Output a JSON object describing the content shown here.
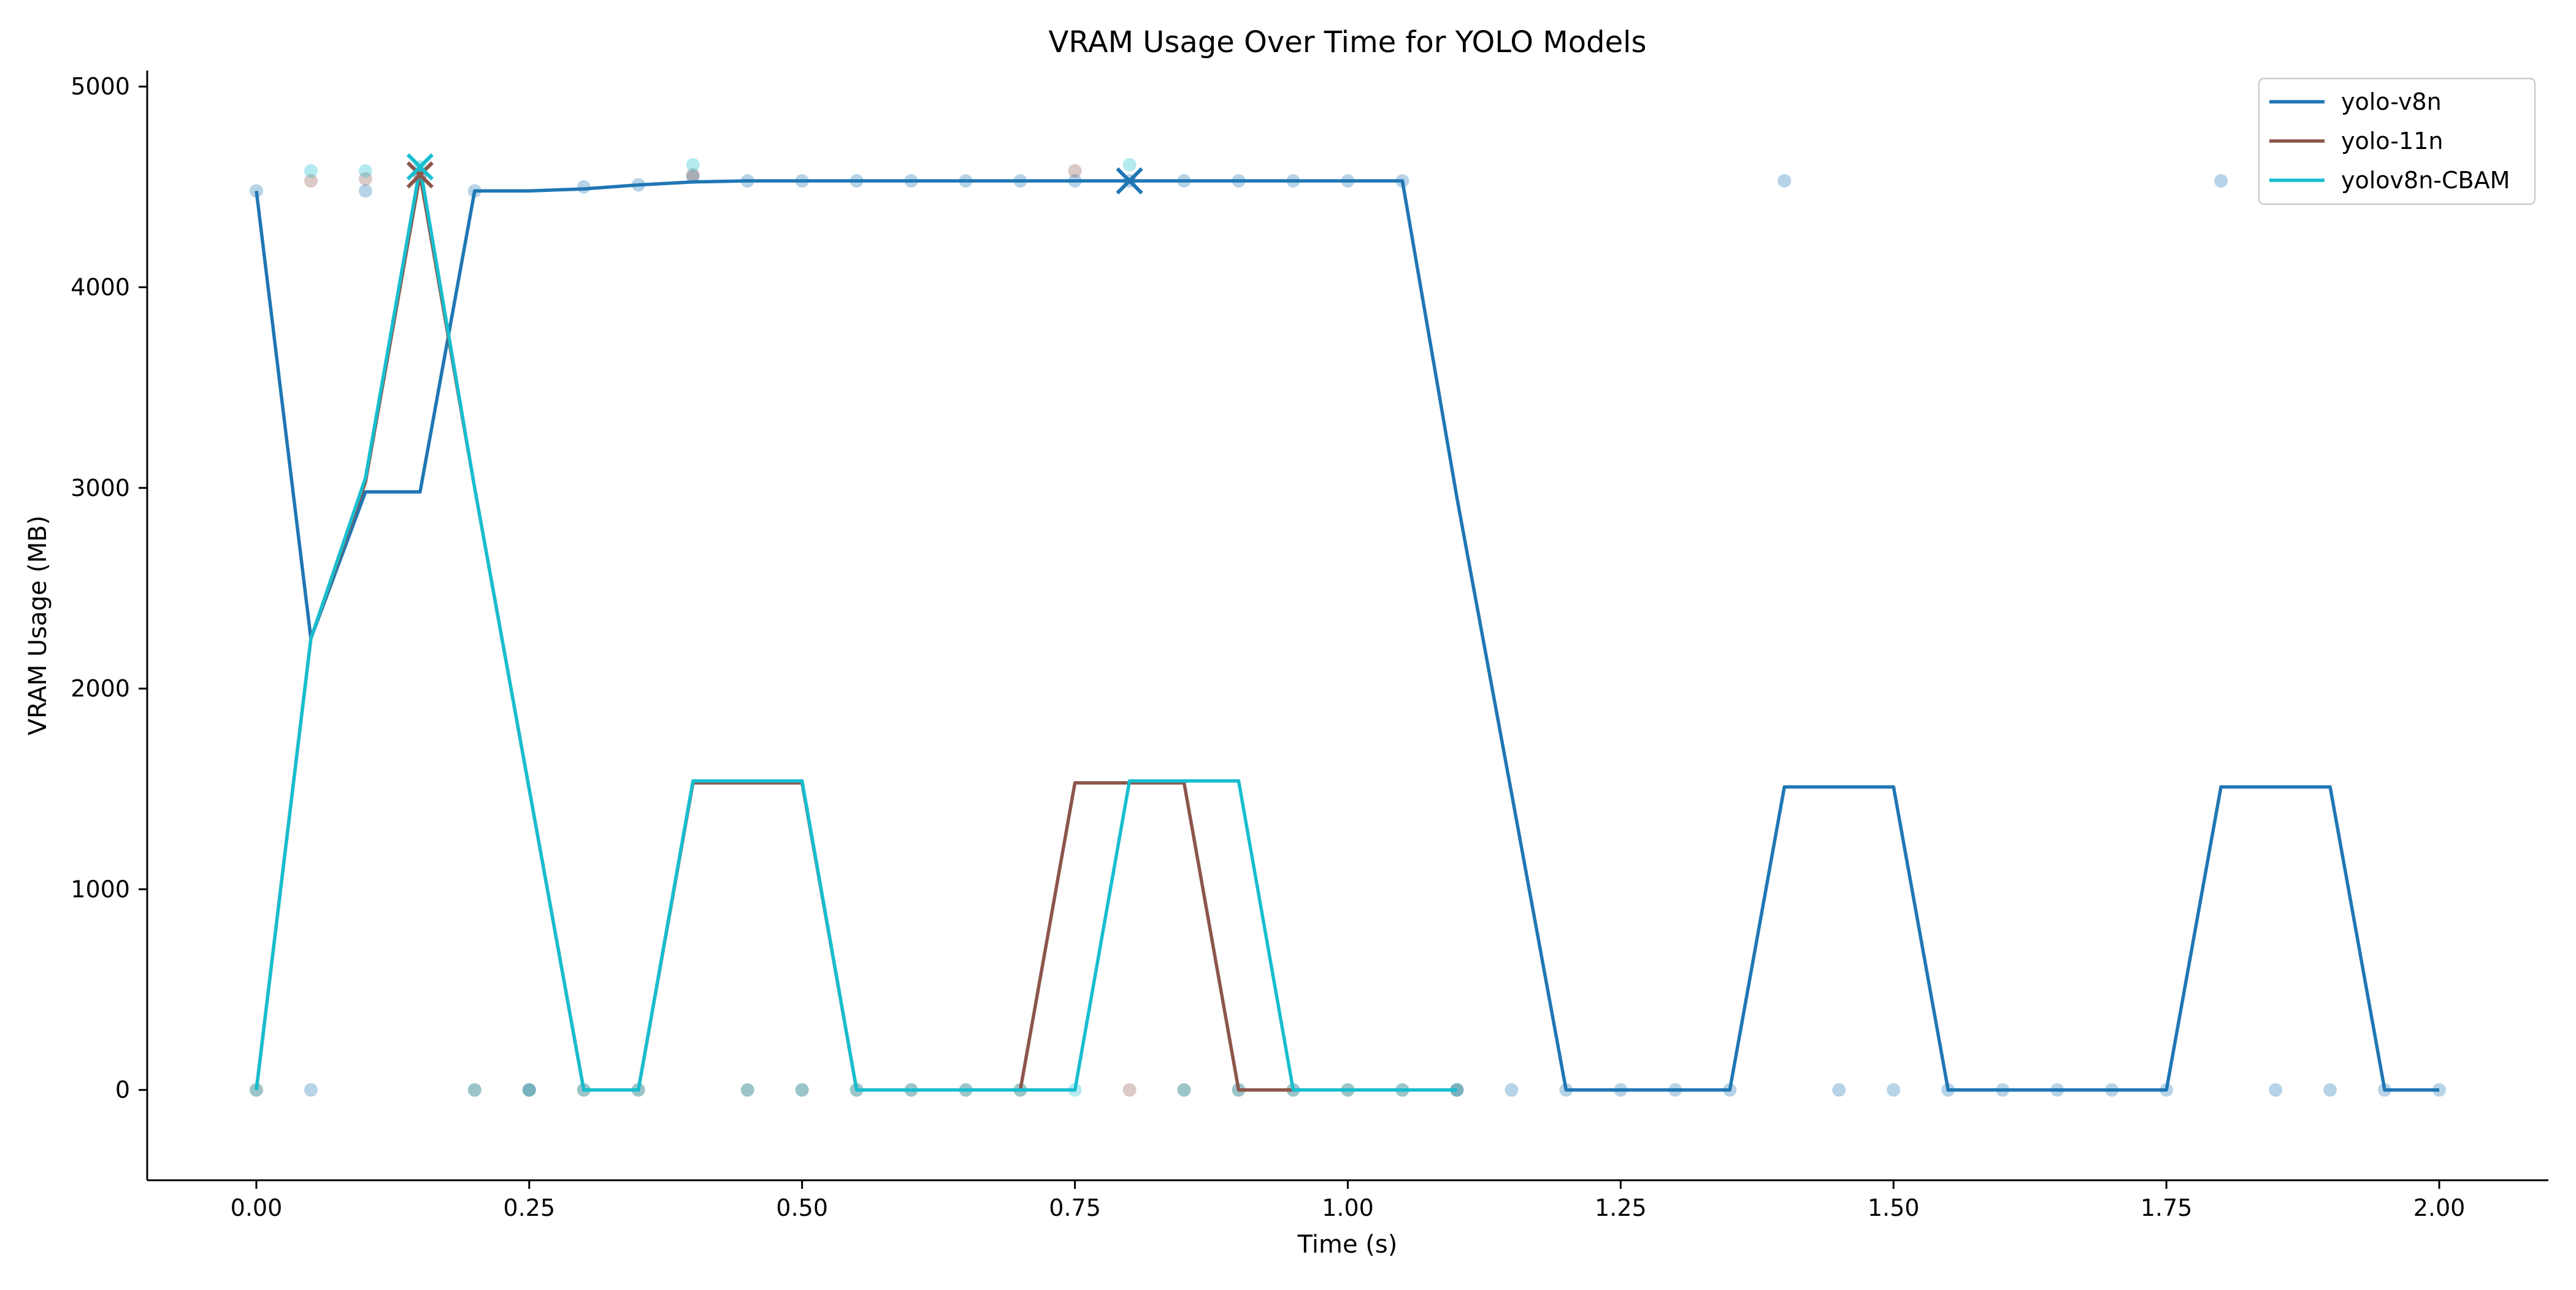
{
  "chart_data": {
    "type": "line",
    "title": "VRAM Usage Over Time for YOLO Models",
    "xlabel": "Time (s)",
    "ylabel": "VRAM Usage (MB)",
    "xlim": [
      -0.1,
      2.1
    ],
    "ylim": [
      -450,
      5080
    ],
    "xticks": [
      0.0,
      0.25,
      0.5,
      0.75,
      1.0,
      1.25,
      1.5,
      1.75,
      2.0
    ],
    "xtick_labels": [
      "0.00",
      "0.25",
      "0.50",
      "0.75",
      "1.00",
      "1.25",
      "1.50",
      "1.75",
      "2.00"
    ],
    "yticks": [
      0,
      1000,
      2000,
      3000,
      4000,
      5000
    ],
    "ytick_labels": [
      "0",
      "1000",
      "2000",
      "3000",
      "4000",
      "5000"
    ],
    "grid": false,
    "legend_position": "top-right",
    "series": [
      {
        "name": "yolo-v8n",
        "color": "#1f77b4",
        "x": [
          0.0,
          0.05,
          0.1,
          0.15,
          0.2,
          0.25,
          0.3,
          0.35,
          0.4,
          0.45,
          0.5,
          0.55,
          0.6,
          0.65,
          0.7,
          0.75,
          0.8,
          0.85,
          0.9,
          0.95,
          1.0,
          1.05,
          1.1,
          1.15,
          1.2,
          1.25,
          1.3,
          1.35,
          1.4,
          1.45,
          1.5,
          1.55,
          1.6,
          1.65,
          1.7,
          1.75,
          1.8,
          1.85,
          1.9,
          1.95,
          2.0
        ],
        "y": [
          4480,
          2250,
          2980,
          2980,
          4480,
          4480,
          4490,
          4510,
          4525,
          4530,
          4530,
          4530,
          4530,
          4530,
          4530,
          4530,
          4530,
          4530,
          4530,
          4530,
          4530,
          4530,
          2950,
          1480,
          0,
          0,
          0,
          0,
          1510,
          1510,
          1510,
          0,
          0,
          0,
          0,
          0,
          1510,
          1510,
          1510,
          0,
          0
        ],
        "scatter_y": [
          4480,
          0,
          4480,
          4560,
          4480,
          0,
          4500,
          4510,
          4550,
          4530,
          4530,
          4530,
          4530,
          4530,
          4530,
          4530,
          4530,
          4530,
          4530,
          4530,
          4530,
          4530,
          0,
          0,
          0,
          0,
          0,
          0,
          4530,
          0,
          0,
          0,
          0,
          0,
          0,
          0,
          4530,
          0,
          0,
          0,
          0
        ],
        "peak": {
          "x": 0.8,
          "y": 4530
        }
      },
      {
        "name": "yolo-11n",
        "color": "#8c564b",
        "x": [
          0.0,
          0.05,
          0.1,
          0.15,
          0.2,
          0.25,
          0.3,
          0.35,
          0.4,
          0.45,
          0.5,
          0.55,
          0.6,
          0.65,
          0.7,
          0.75,
          0.8,
          0.85,
          0.9,
          0.95,
          1.0,
          1.05,
          1.1
        ],
        "y": [
          0,
          2250,
          3030,
          4560,
          3000,
          1500,
          0,
          0,
          1530,
          1530,
          1530,
          0,
          0,
          0,
          0,
          1530,
          1530,
          1530,
          0,
          0,
          0,
          0,
          0
        ],
        "scatter_y": [
          0,
          4530,
          4540,
          4560,
          0,
          0,
          0,
          0,
          4560,
          0,
          0,
          0,
          0,
          0,
          0,
          4580,
          0,
          0,
          0,
          0,
          0,
          0,
          0
        ],
        "peak": {
          "x": 0.15,
          "y": 4560
        }
      },
      {
        "name": "yolov8n-CBAM",
        "color": "#17becf",
        "x": [
          0.0,
          0.05,
          0.1,
          0.15,
          0.2,
          0.25,
          0.3,
          0.35,
          0.4,
          0.45,
          0.5,
          0.55,
          0.6,
          0.65,
          0.7,
          0.75,
          0.8,
          0.85,
          0.9,
          0.95,
          1.0,
          1.05,
          1.1
        ],
        "y": [
          0,
          2250,
          3050,
          4600,
          3000,
          1500,
          0,
          0,
          1540,
          1540,
          1540,
          0,
          0,
          0,
          0,
          0,
          1540,
          1540,
          1540,
          0,
          0,
          0,
          0
        ],
        "scatter_y": [
          0,
          4580,
          4580,
          4600,
          0,
          0,
          0,
          0,
          4610,
          0,
          0,
          0,
          0,
          0,
          0,
          0,
          4610,
          0,
          0,
          0,
          0,
          0,
          0
        ],
        "peak": {
          "x": 0.15,
          "y": 4600
        }
      }
    ]
  }
}
